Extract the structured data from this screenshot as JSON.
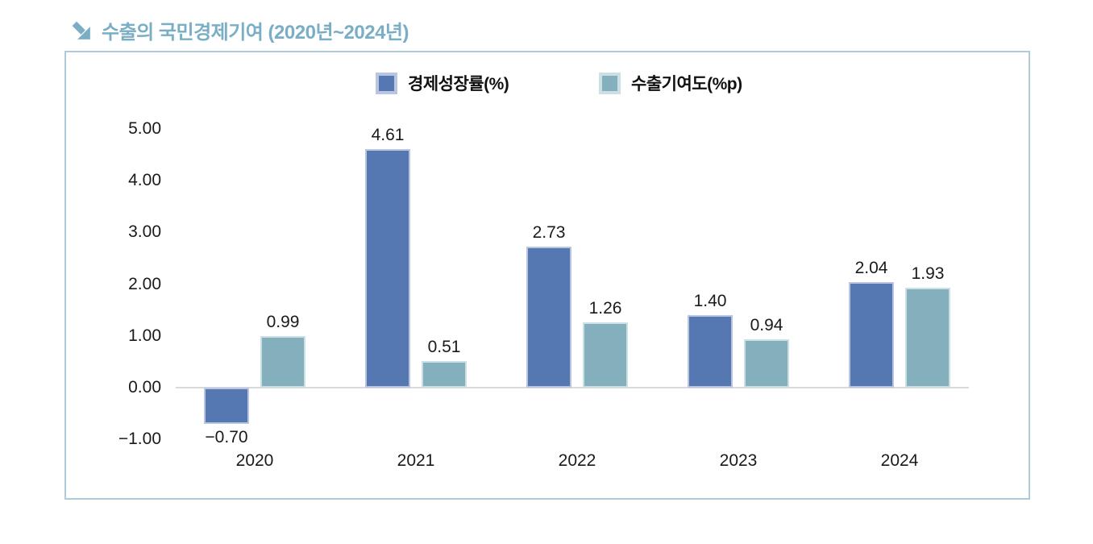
{
  "title": {
    "icon": "arrow-down-right",
    "text": "수출의 국민경제기여 (2020년~2024년)",
    "color": "#79AEC4"
  },
  "panel": {
    "border_color": "#AECBD7"
  },
  "chart_data": {
    "type": "bar",
    "title": "수출의 국민경제기여 (2020년~2024년)",
    "categories": [
      "2020",
      "2021",
      "2022",
      "2023",
      "2024"
    ],
    "series": [
      {
        "name": "경제성장률(%)",
        "values": [
          -0.7,
          4.61,
          2.73,
          1.4,
          2.04
        ],
        "labels": [
          "−0.70",
          "4.61",
          "2.73",
          "1.40",
          "2.04"
        ],
        "color": "#5578B2",
        "border_color": "#BAC6E1"
      },
      {
        "name": "수출기여도(%p)",
        "values": [
          0.99,
          0.51,
          1.26,
          0.94,
          1.93
        ],
        "labels": [
          "0.99",
          "0.51",
          "1.26",
          "0.94",
          "1.93"
        ],
        "color": "#84AFBC",
        "border_color": "#CBDFE5"
      }
    ],
    "ylim": [
      -1.0,
      5.0
    ],
    "yticks": [
      {
        "value": 5,
        "label": "5.00"
      },
      {
        "value": 4,
        "label": "4.00"
      },
      {
        "value": 3,
        "label": "3.00"
      },
      {
        "value": 2,
        "label": "2.00"
      },
      {
        "value": 1,
        "label": "1.00"
      },
      {
        "value": 0,
        "label": "0.00"
      },
      {
        "value": -1,
        "label": "−1.00"
      }
    ],
    "legend_position": "top",
    "grid": false,
    "axis_color": "#D9D9D9",
    "text_color": "#1A1A1A"
  }
}
